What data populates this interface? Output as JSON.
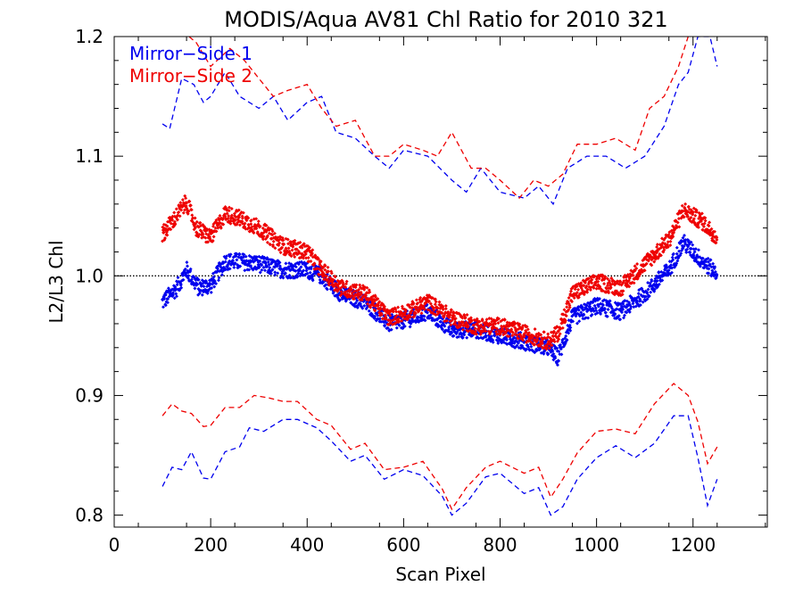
{
  "chart_data": {
    "type": "scatter",
    "title": "MODIS/Aqua AV81 Chl Ratio for 2010 321",
    "xlabel": "Scan Pixel",
    "ylabel": "L2/L3 Chl",
    "xlim": [
      0,
      1354
    ],
    "ylim": [
      0.79,
      1.2
    ],
    "x_ticks": [
      "0",
      "200",
      "400",
      "600",
      "800",
      "1000",
      "1200"
    ],
    "y_ticks": [
      "0.8",
      "0.9",
      "1.0",
      "1.1",
      "1.2"
    ],
    "reference_line": 1.0,
    "legend_position": "top-left",
    "colors": {
      "Mirror-Side 1": "#0000ee",
      "Mirror-Side 2": "#ee0000"
    },
    "series": [
      {
        "name": "Mirror−Side 1",
        "color": "#0000ee",
        "mean": {
          "x": [
            100,
            130,
            150,
            175,
            200,
            230,
            260,
            300,
            350,
            400,
            430,
            470,
            520,
            570,
            620,
            650,
            700,
            750,
            800,
            850,
            900,
            920,
            950,
            1000,
            1050,
            1100,
            1150,
            1180,
            1220,
            1250
          ],
          "y": [
            0.978,
            0.99,
            1.005,
            0.99,
            0.992,
            1.012,
            1.012,
            1.01,
            1.005,
            1.005,
            1.0,
            0.985,
            0.978,
            0.96,
            0.965,
            0.97,
            0.955,
            0.955,
            0.95,
            0.945,
            0.94,
            0.932,
            0.965,
            0.975,
            0.97,
            0.985,
            1.005,
            1.028,
            1.012,
            1.002
          ]
        },
        "upper": {
          "x": [
            100,
            115,
            140,
            165,
            185,
            200,
            230,
            260,
            300,
            330,
            360,
            400,
            430,
            460,
            500,
            540,
            570,
            600,
            650,
            700,
            730,
            760,
            800,
            850,
            880,
            910,
            940,
            980,
            1020,
            1060,
            1100,
            1140,
            1170,
            1190,
            1210,
            1235,
            1250
          ],
          "y": [
            1.127,
            1.123,
            1.165,
            1.16,
            1.145,
            1.15,
            1.17,
            1.15,
            1.14,
            1.15,
            1.13,
            1.145,
            1.15,
            1.12,
            1.115,
            1.1,
            1.09,
            1.105,
            1.1,
            1.08,
            1.07,
            1.09,
            1.07,
            1.065,
            1.075,
            1.06,
            1.09,
            1.1,
            1.1,
            1.09,
            1.1,
            1.125,
            1.16,
            1.17,
            1.2,
            1.2,
            1.175
          ]
        },
        "lower": {
          "x": [
            100,
            120,
            140,
            160,
            185,
            200,
            230,
            260,
            280,
            310,
            350,
            380,
            420,
            450,
            490,
            520,
            560,
            600,
            640,
            680,
            700,
            730,
            770,
            800,
            850,
            880,
            905,
            930,
            960,
            1000,
            1040,
            1080,
            1120,
            1160,
            1190,
            1210,
            1230,
            1250
          ],
          "y": [
            0.824,
            0.84,
            0.838,
            0.853,
            0.831,
            0.83,
            0.853,
            0.857,
            0.873,
            0.87,
            0.88,
            0.88,
            0.873,
            0.862,
            0.845,
            0.85,
            0.83,
            0.838,
            0.833,
            0.816,
            0.8,
            0.81,
            0.832,
            0.835,
            0.818,
            0.823,
            0.8,
            0.807,
            0.83,
            0.848,
            0.858,
            0.848,
            0.86,
            0.883,
            0.883,
            0.848,
            0.808,
            0.83
          ]
        }
      },
      {
        "name": "Mirror−Side 2",
        "color": "#ee0000",
        "mean": {
          "x": [
            100,
            120,
            150,
            170,
            200,
            230,
            260,
            300,
            350,
            400,
            430,
            470,
            520,
            570,
            620,
            650,
            700,
            750,
            800,
            850,
            900,
            920,
            950,
            1000,
            1050,
            1100,
            1150,
            1180,
            1220,
            1250
          ],
          "y": [
            1.035,
            1.045,
            1.062,
            1.04,
            1.032,
            1.052,
            1.048,
            1.04,
            1.025,
            1.02,
            1.005,
            0.99,
            0.985,
            0.965,
            0.972,
            0.978,
            0.965,
            0.958,
            0.958,
            0.952,
            0.945,
            0.952,
            0.985,
            0.995,
            0.99,
            1.01,
            1.03,
            1.055,
            1.045,
            1.032
          ]
        },
        "upper": {
          "x": [
            110,
            120,
            140,
            170,
            200,
            240,
            270,
            300,
            330,
            360,
            400,
            430,
            460,
            500,
            540,
            570,
            600,
            640,
            670,
            700,
            740,
            770,
            800,
            840,
            870,
            900,
            930,
            960,
            1000,
            1040,
            1080,
            1110,
            1140,
            1170,
            1190,
            1210,
            1240,
            1250
          ],
          "y": [
            1.2,
            1.205,
            1.205,
            1.195,
            1.175,
            1.19,
            1.18,
            1.165,
            1.15,
            1.155,
            1.16,
            1.14,
            1.125,
            1.13,
            1.1,
            1.1,
            1.11,
            1.105,
            1.1,
            1.12,
            1.09,
            1.09,
            1.08,
            1.065,
            1.08,
            1.075,
            1.085,
            1.11,
            1.11,
            1.115,
            1.105,
            1.14,
            1.15,
            1.175,
            1.2,
            1.21,
            1.21,
            1.205
          ]
        },
        "lower": {
          "x": [
            100,
            120,
            140,
            160,
            185,
            200,
            230,
            260,
            290,
            320,
            350,
            380,
            420,
            450,
            490,
            520,
            560,
            600,
            640,
            680,
            700,
            730,
            770,
            800,
            850,
            880,
            905,
            930,
            960,
            1000,
            1040,
            1080,
            1120,
            1160,
            1190,
            1210,
            1230,
            1250
          ],
          "y": [
            0.883,
            0.893,
            0.887,
            0.885,
            0.874,
            0.875,
            0.89,
            0.89,
            0.9,
            0.898,
            0.895,
            0.895,
            0.88,
            0.875,
            0.855,
            0.86,
            0.838,
            0.84,
            0.845,
            0.822,
            0.805,
            0.823,
            0.84,
            0.845,
            0.835,
            0.84,
            0.815,
            0.83,
            0.852,
            0.87,
            0.872,
            0.868,
            0.893,
            0.91,
            0.9,
            0.878,
            0.843,
            0.857
          ]
        }
      }
    ]
  }
}
